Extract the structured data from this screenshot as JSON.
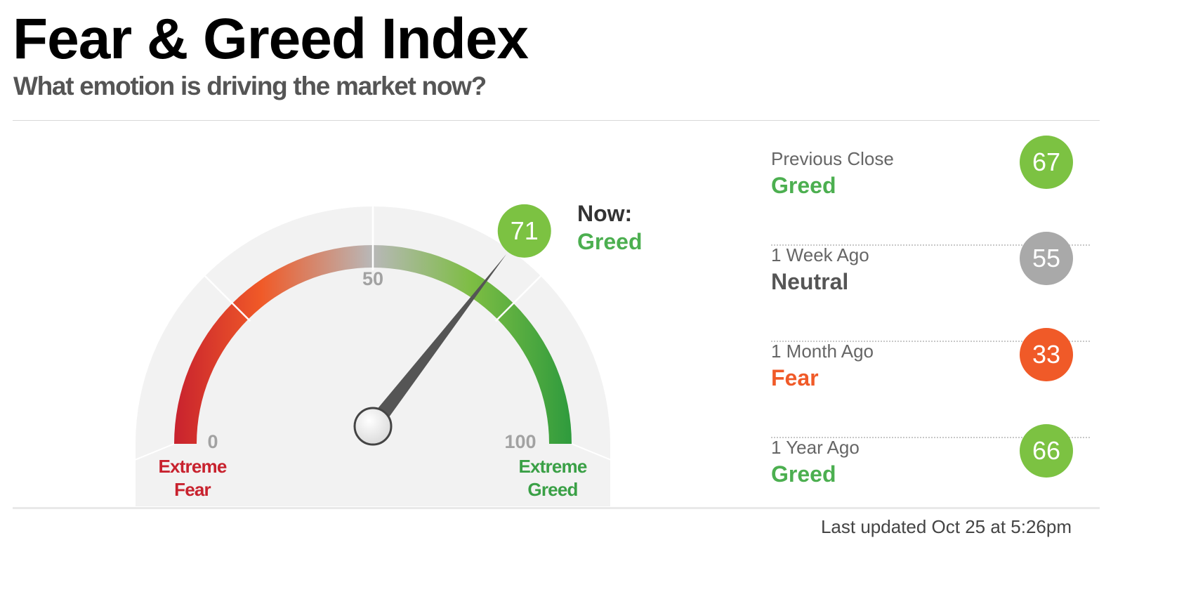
{
  "header": {
    "title": "Fear & Greed Index",
    "subtitle": "What emotion is driving the market now?"
  },
  "gauge": {
    "value": 71,
    "scale_min": 0,
    "scale_mid": 50,
    "scale_max": 100,
    "tick_0": "0",
    "tick_50": "50",
    "tick_100": "100",
    "left_label_line1": "Extreme",
    "left_label_line2": "Fear",
    "right_label_line1": "Extreme",
    "right_label_line2": "Greed",
    "now_value": "71",
    "now_title": "Now:",
    "now_rating": "Greed",
    "colors": {
      "extreme_fear": "#c8222e",
      "fear": "#f05a28",
      "neutral": "#a3a3a3",
      "greed": "#7dbd43",
      "extreme_greed": "#2f9b3d"
    }
  },
  "history": [
    {
      "label": "Previous Close",
      "rating": "Greed",
      "value": "67",
      "rating_color": "#4caf50",
      "circle_color": "#7cc242"
    },
    {
      "label": "1 Week Ago",
      "rating": "Neutral",
      "value": "55",
      "rating_color": "#555555",
      "circle_color": "#a9a9a9"
    },
    {
      "label": "1 Month Ago",
      "rating": "Fear",
      "value": "33",
      "rating_color": "#f05a28",
      "circle_color": "#f05a28"
    },
    {
      "label": "1 Year Ago",
      "rating": "Greed",
      "value": "66",
      "rating_color": "#4caf50",
      "circle_color": "#7cc242"
    }
  ],
  "footer": {
    "last_updated": "Last updated Oct 25 at 5:26pm"
  }
}
